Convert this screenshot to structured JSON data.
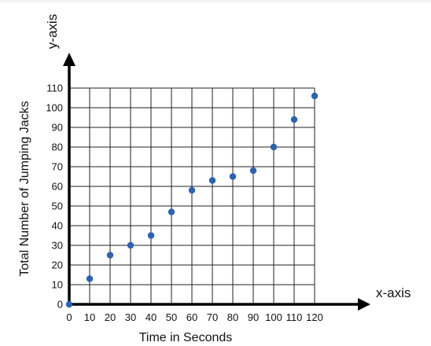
{
  "chart_data": {
    "type": "scatter",
    "title": "",
    "xlabel": "Time in Seconds",
    "ylabel": "Total Number of Jumping Jacks",
    "x_axis_name": "x-axis",
    "y_axis_name": "y-axis",
    "xlim": [
      0,
      120
    ],
    "ylim": [
      0,
      110
    ],
    "x_ticks": [
      0,
      10,
      20,
      30,
      40,
      50,
      60,
      70,
      80,
      90,
      100,
      110,
      120
    ],
    "y_ticks": [
      0,
      10,
      20,
      30,
      40,
      50,
      60,
      70,
      80,
      90,
      100,
      110
    ],
    "grid": true,
    "marker_color": "#2a63b6",
    "points": [
      {
        "x": 0,
        "y": 0
      },
      {
        "x": 10,
        "y": 13
      },
      {
        "x": 20,
        "y": 25
      },
      {
        "x": 30,
        "y": 30
      },
      {
        "x": 40,
        "y": 35
      },
      {
        "x": 50,
        "y": 47
      },
      {
        "x": 60,
        "y": 58
      },
      {
        "x": 70,
        "y": 63
      },
      {
        "x": 80,
        "y": 65
      },
      {
        "x": 90,
        "y": 68
      },
      {
        "x": 100,
        "y": 80
      },
      {
        "x": 110,
        "y": 94
      },
      {
        "x": 120,
        "y": 106
      }
    ]
  }
}
